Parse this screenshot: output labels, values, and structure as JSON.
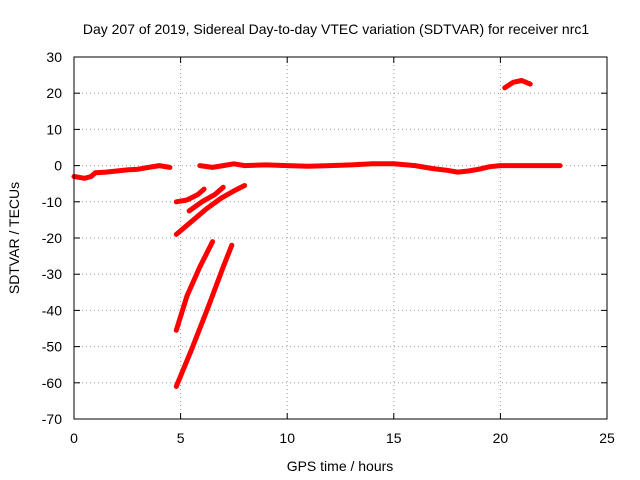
{
  "chart_data": {
    "type": "line",
    "title": "Day 207 of 2019, Sidereal Day-to-day VTEC variation (SDTVAR) for receiver nrc1",
    "xlabel": "GPS time / hours",
    "ylabel": "SDTVAR / TECUs",
    "xlim": [
      0,
      25
    ],
    "ylim": [
      -70,
      30
    ],
    "xticks": [
      "0",
      "5",
      "10",
      "15",
      "20",
      "25"
    ],
    "yticks": [
      "30",
      "20",
      "10",
      "0",
      "-10",
      "-20",
      "-30",
      "-40",
      "-50",
      "-60",
      "-70"
    ],
    "grid": true,
    "color": "#ff0000",
    "segments": [
      {
        "x": [
          0.0,
          0.5,
          0.8,
          1.0,
          1.5,
          2.0,
          2.5,
          3.0,
          3.5,
          4.0,
          4.5
        ],
        "y": [
          -3.0,
          -3.5,
          -3.0,
          -2.0,
          -1.8,
          -1.5,
          -1.2,
          -1.0,
          -0.5,
          0.0,
          -0.5
        ]
      },
      {
        "x": [
          5.9,
          6.5,
          7.0,
          7.5,
          8.0,
          9.0,
          10.0,
          11.0,
          12.0,
          13.0,
          14.0,
          15.0,
          16.0,
          16.8,
          17.5,
          18.0,
          18.5,
          19.0,
          19.5,
          20.0,
          21.0,
          22.0,
          22.8
        ],
        "y": [
          0.0,
          -0.5,
          0.0,
          0.5,
          0.0,
          0.2,
          0.0,
          -0.2,
          0.0,
          0.2,
          0.5,
          0.5,
          0.0,
          -0.8,
          -1.3,
          -1.8,
          -1.5,
          -1.0,
          -0.3,
          0.0,
          0.0,
          0.0,
          0.0
        ]
      },
      {
        "x": [
          20.2,
          20.6,
          21.0,
          21.4
        ],
        "y": [
          21.5,
          23.0,
          23.5,
          22.5
        ]
      },
      {
        "x": [
          4.8,
          5.3,
          5.8,
          6.1
        ],
        "y": [
          -10.0,
          -9.5,
          -8.0,
          -6.5
        ]
      },
      {
        "x": [
          5.4,
          6.0,
          6.6,
          7.0
        ],
        "y": [
          -12.5,
          -10.0,
          -8.0,
          -6.0
        ]
      },
      {
        "x": [
          4.8,
          5.5,
          6.2,
          6.9,
          7.5,
          8.0
        ],
        "y": [
          -19.0,
          -15.5,
          -12.0,
          -9.0,
          -7.0,
          -5.5
        ]
      },
      {
        "x": [
          4.8,
          5.3,
          5.9,
          6.5
        ],
        "y": [
          -45.5,
          -36.0,
          -28.0,
          -21.0
        ]
      },
      {
        "x": [
          4.8,
          5.5,
          6.3,
          7.0,
          7.4
        ],
        "y": [
          -61.0,
          -51.0,
          -39.0,
          -28.0,
          -22.0
        ]
      }
    ]
  }
}
